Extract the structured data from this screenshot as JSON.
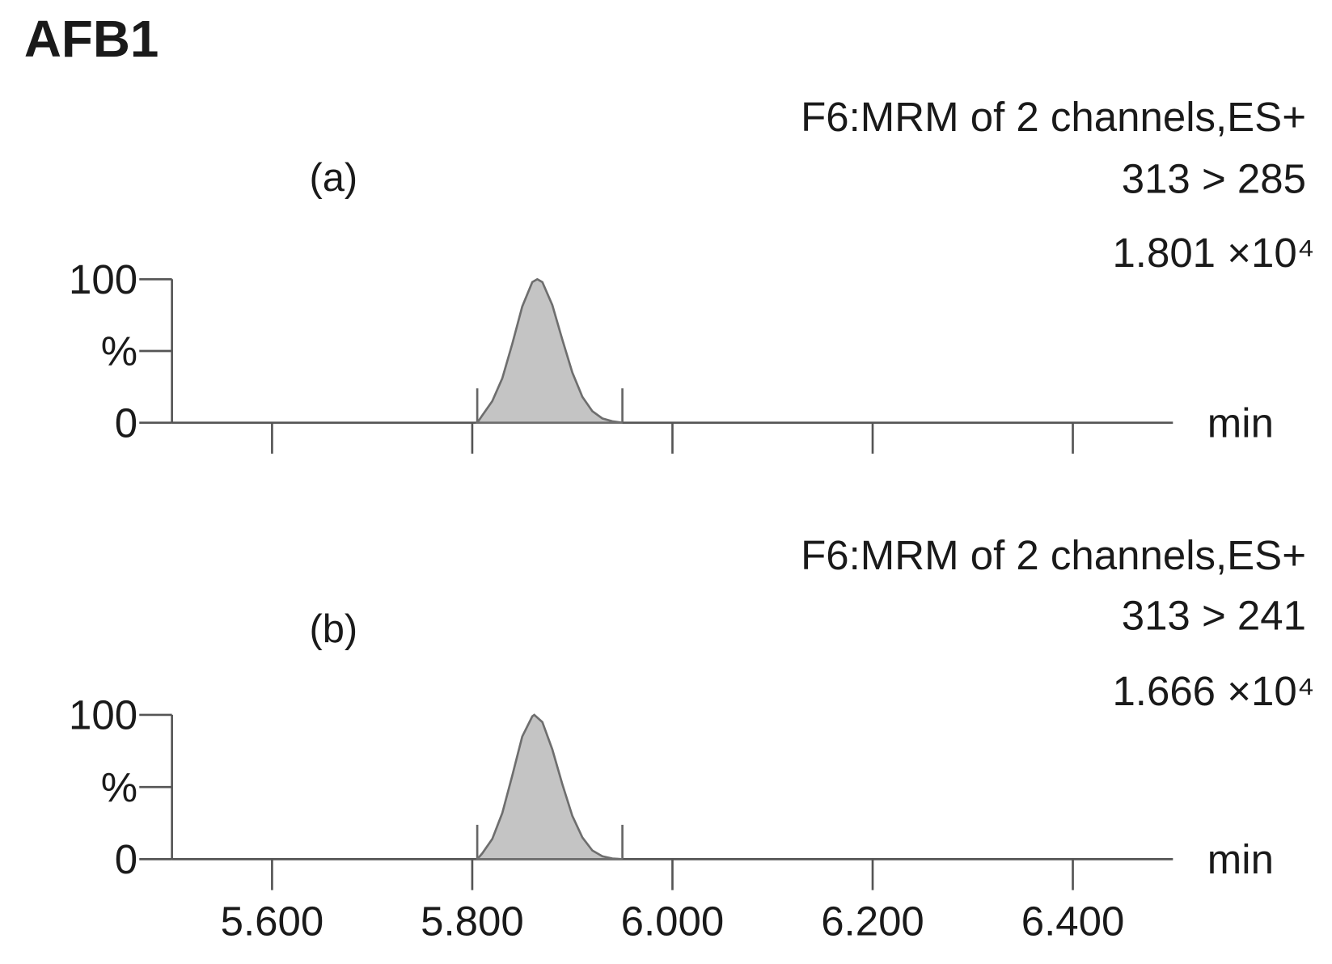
{
  "title": "AFB1",
  "chart_data": [
    {
      "type": "line",
      "panel_label": "(a)",
      "method": "F6:MRM of 2 channels,ES+",
      "transition": "313 > 285",
      "intensity": "1.801 ×10⁴",
      "xlabel": "min",
      "color": "#6e6e6e",
      "fill": "#c4c4c4",
      "xlim": [
        5.5,
        6.5
      ],
      "xticks": [
        {
          "value": 5.6,
          "label": "5.600"
        },
        {
          "value": 5.8,
          "label": "5.800"
        },
        {
          "value": 6.0,
          "label": "6.000"
        },
        {
          "value": 6.2,
          "label": "6.200"
        },
        {
          "value": 6.4,
          "label": "6.400"
        }
      ],
      "show_xtick_labels": false,
      "ylim": [
        0,
        100
      ],
      "yticks": [
        0,
        {
          "value": 50,
          "label": "%"
        },
        100
      ],
      "integration_limits": [
        5.805,
        5.95
      ],
      "x": [
        5.805,
        5.81,
        5.82,
        5.83,
        5.84,
        5.85,
        5.86,
        5.865,
        5.87,
        5.88,
        5.89,
        5.9,
        5.91,
        5.92,
        5.93,
        5.94,
        5.95
      ],
      "values": [
        0,
        5,
        15,
        31,
        55,
        81,
        98,
        100,
        98,
        82,
        58,
        35,
        18,
        8,
        3,
        1,
        0
      ]
    },
    {
      "type": "line",
      "panel_label": "(b)",
      "method": "F6:MRM of 2 channels,ES+",
      "transition": "313 > 241",
      "intensity": "1.666 ×10⁴",
      "xlabel": "min",
      "color": "#6e6e6e",
      "fill": "#c4c4c4",
      "xlim": [
        5.5,
        6.5
      ],
      "xticks": [
        {
          "value": 5.6,
          "label": "5.600"
        },
        {
          "value": 5.8,
          "label": "5.800"
        },
        {
          "value": 6.0,
          "label": "6.000"
        },
        {
          "value": 6.2,
          "label": "6.200"
        },
        {
          "value": 6.4,
          "label": "6.400"
        }
      ],
      "show_xtick_labels": true,
      "ylim": [
        0,
        100
      ],
      "yticks": [
        0,
        {
          "value": 50,
          "label": "%"
        },
        100
      ],
      "integration_limits": [
        5.805,
        5.95
      ],
      "x": [
        5.805,
        5.81,
        5.82,
        5.83,
        5.84,
        5.85,
        5.86,
        5.862,
        5.87,
        5.88,
        5.89,
        5.9,
        5.91,
        5.92,
        5.93,
        5.94,
        5.95
      ],
      "values": [
        0,
        4,
        14,
        32,
        58,
        85,
        99,
        100,
        95,
        76,
        52,
        30,
        15,
        6,
        2,
        0.5,
        0
      ]
    }
  ]
}
